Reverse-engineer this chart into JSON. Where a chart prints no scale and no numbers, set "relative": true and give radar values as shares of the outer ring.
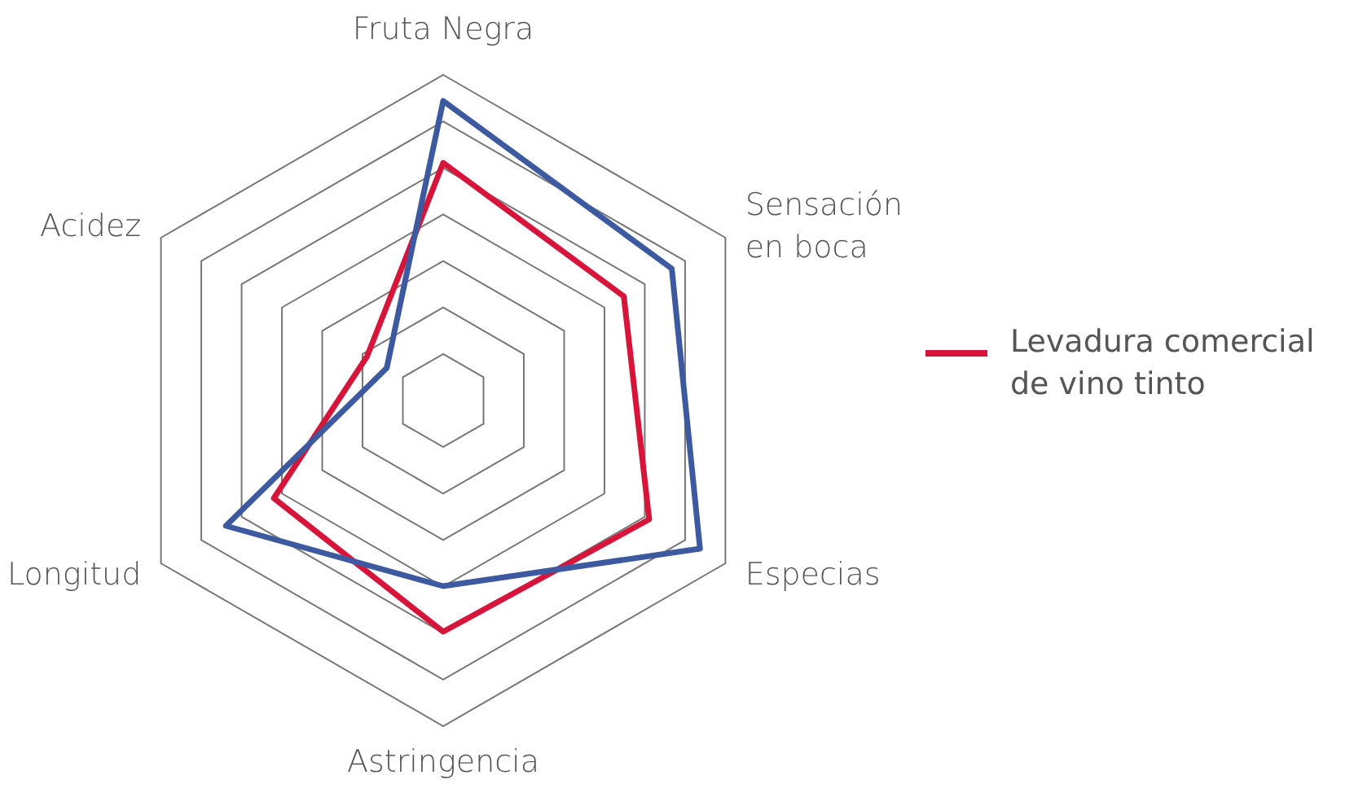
{
  "chart_data": {
    "type": "radar",
    "relative": true,
    "grid": true,
    "legend": "right",
    "categories": [
      "Fruta Negra",
      "Sensación en boca",
      "Especias",
      "Astringencia",
      "Longitud",
      "Acidez"
    ],
    "series": [
      {
        "name": "Levadura comercial de vino tinto",
        "color": "#d7153a",
        "values": [
          0.73,
          0.64,
          0.73,
          0.71,
          0.6,
          0.27
        ]
      },
      {
        "color": "#3d5aa0",
        "values": [
          0.92,
          0.81,
          0.91,
          0.57,
          0.77,
          0.2
        ]
      }
    ]
  }
}
